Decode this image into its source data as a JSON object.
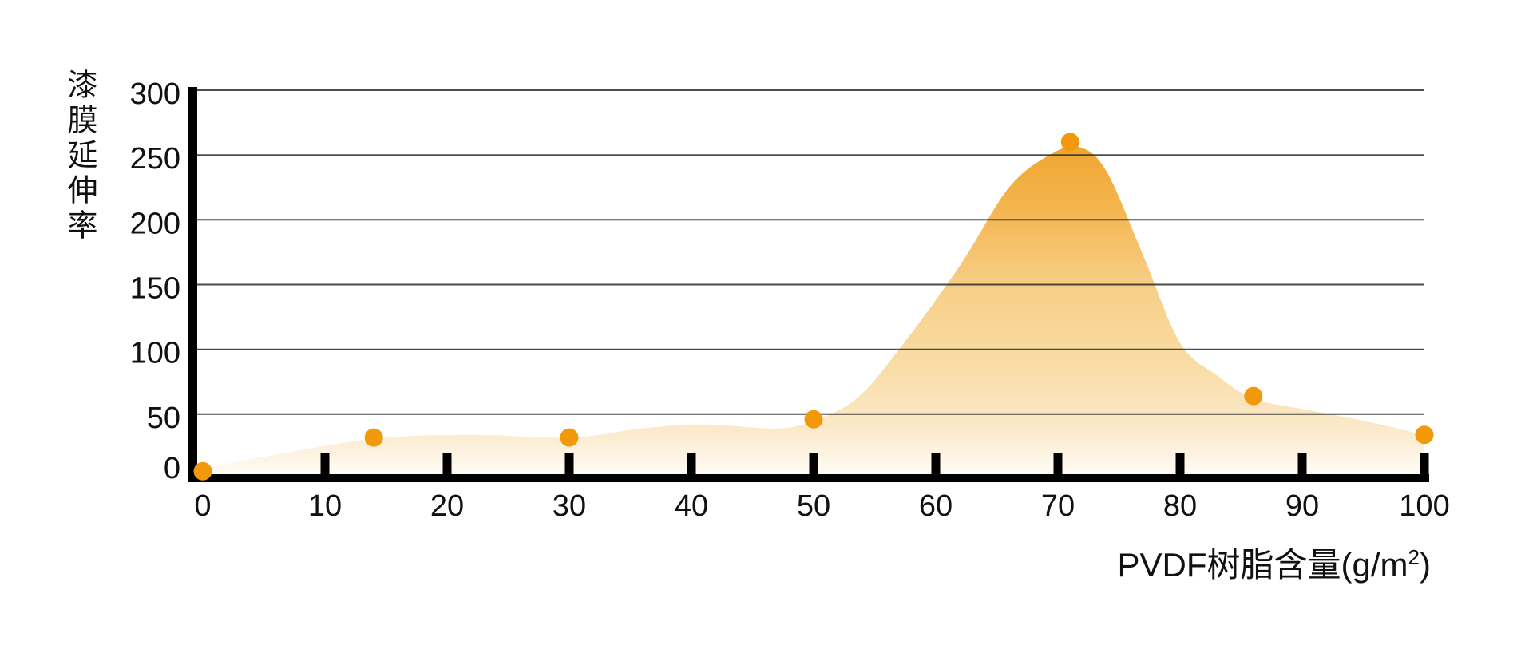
{
  "chart_data": {
    "type": "area",
    "title": "",
    "ylabel": "漆膜延伸率",
    "xlabel": "PVDF树脂含量(g/m²)",
    "xlabel_prefix": "PVDF树脂含量(g/m",
    "xlabel_sup": "2",
    "xlabel_suffix": ")",
    "xlim": [
      0,
      100
    ],
    "ylim": [
      0,
      300
    ],
    "x_ticks": [
      0,
      10,
      20,
      30,
      40,
      50,
      60,
      70,
      80,
      90,
      100
    ],
    "y_ticks": [
      0,
      50,
      100,
      150,
      200,
      250,
      300
    ],
    "grid": "horizontal-only",
    "legend": "none",
    "series": [
      {
        "name": "漆膜延伸率 data points",
        "type": "scatter",
        "points": [
          [
            0,
            6
          ],
          [
            14,
            32
          ],
          [
            30,
            32
          ],
          [
            50,
            46
          ],
          [
            71,
            260
          ],
          [
            86,
            64
          ],
          [
            100,
            34
          ]
        ]
      },
      {
        "name": "漆膜延伸率 area profile",
        "type": "area",
        "profile": [
          [
            -1.2,
            6
          ],
          [
            5,
            17
          ],
          [
            14,
            31
          ],
          [
            22,
            34
          ],
          [
            30,
            32
          ],
          [
            36,
            39
          ],
          [
            41,
            42
          ],
          [
            47,
            39
          ],
          [
            50,
            45
          ],
          [
            53.5,
            62
          ],
          [
            57,
            100
          ],
          [
            62,
            165
          ],
          [
            66,
            225
          ],
          [
            69.5,
            251
          ],
          [
            71.8,
            256
          ],
          [
            74,
            237
          ],
          [
            77,
            172
          ],
          [
            80,
            105
          ],
          [
            83,
            80
          ],
          [
            86,
            62
          ],
          [
            90,
            54
          ],
          [
            95,
            45
          ],
          [
            100,
            34
          ]
        ]
      }
    ],
    "colors": {
      "dot": "#F2990B",
      "axis": "#000000",
      "grid": "#2F2F2F",
      "tick_label": "#111111",
      "area_top": "#F0A42F",
      "area_mid": "#F7CE85",
      "area_low": "#FBE9C9",
      "area_bottom": "#FFFDFA",
      "background": "#FFFFFF"
    }
  }
}
